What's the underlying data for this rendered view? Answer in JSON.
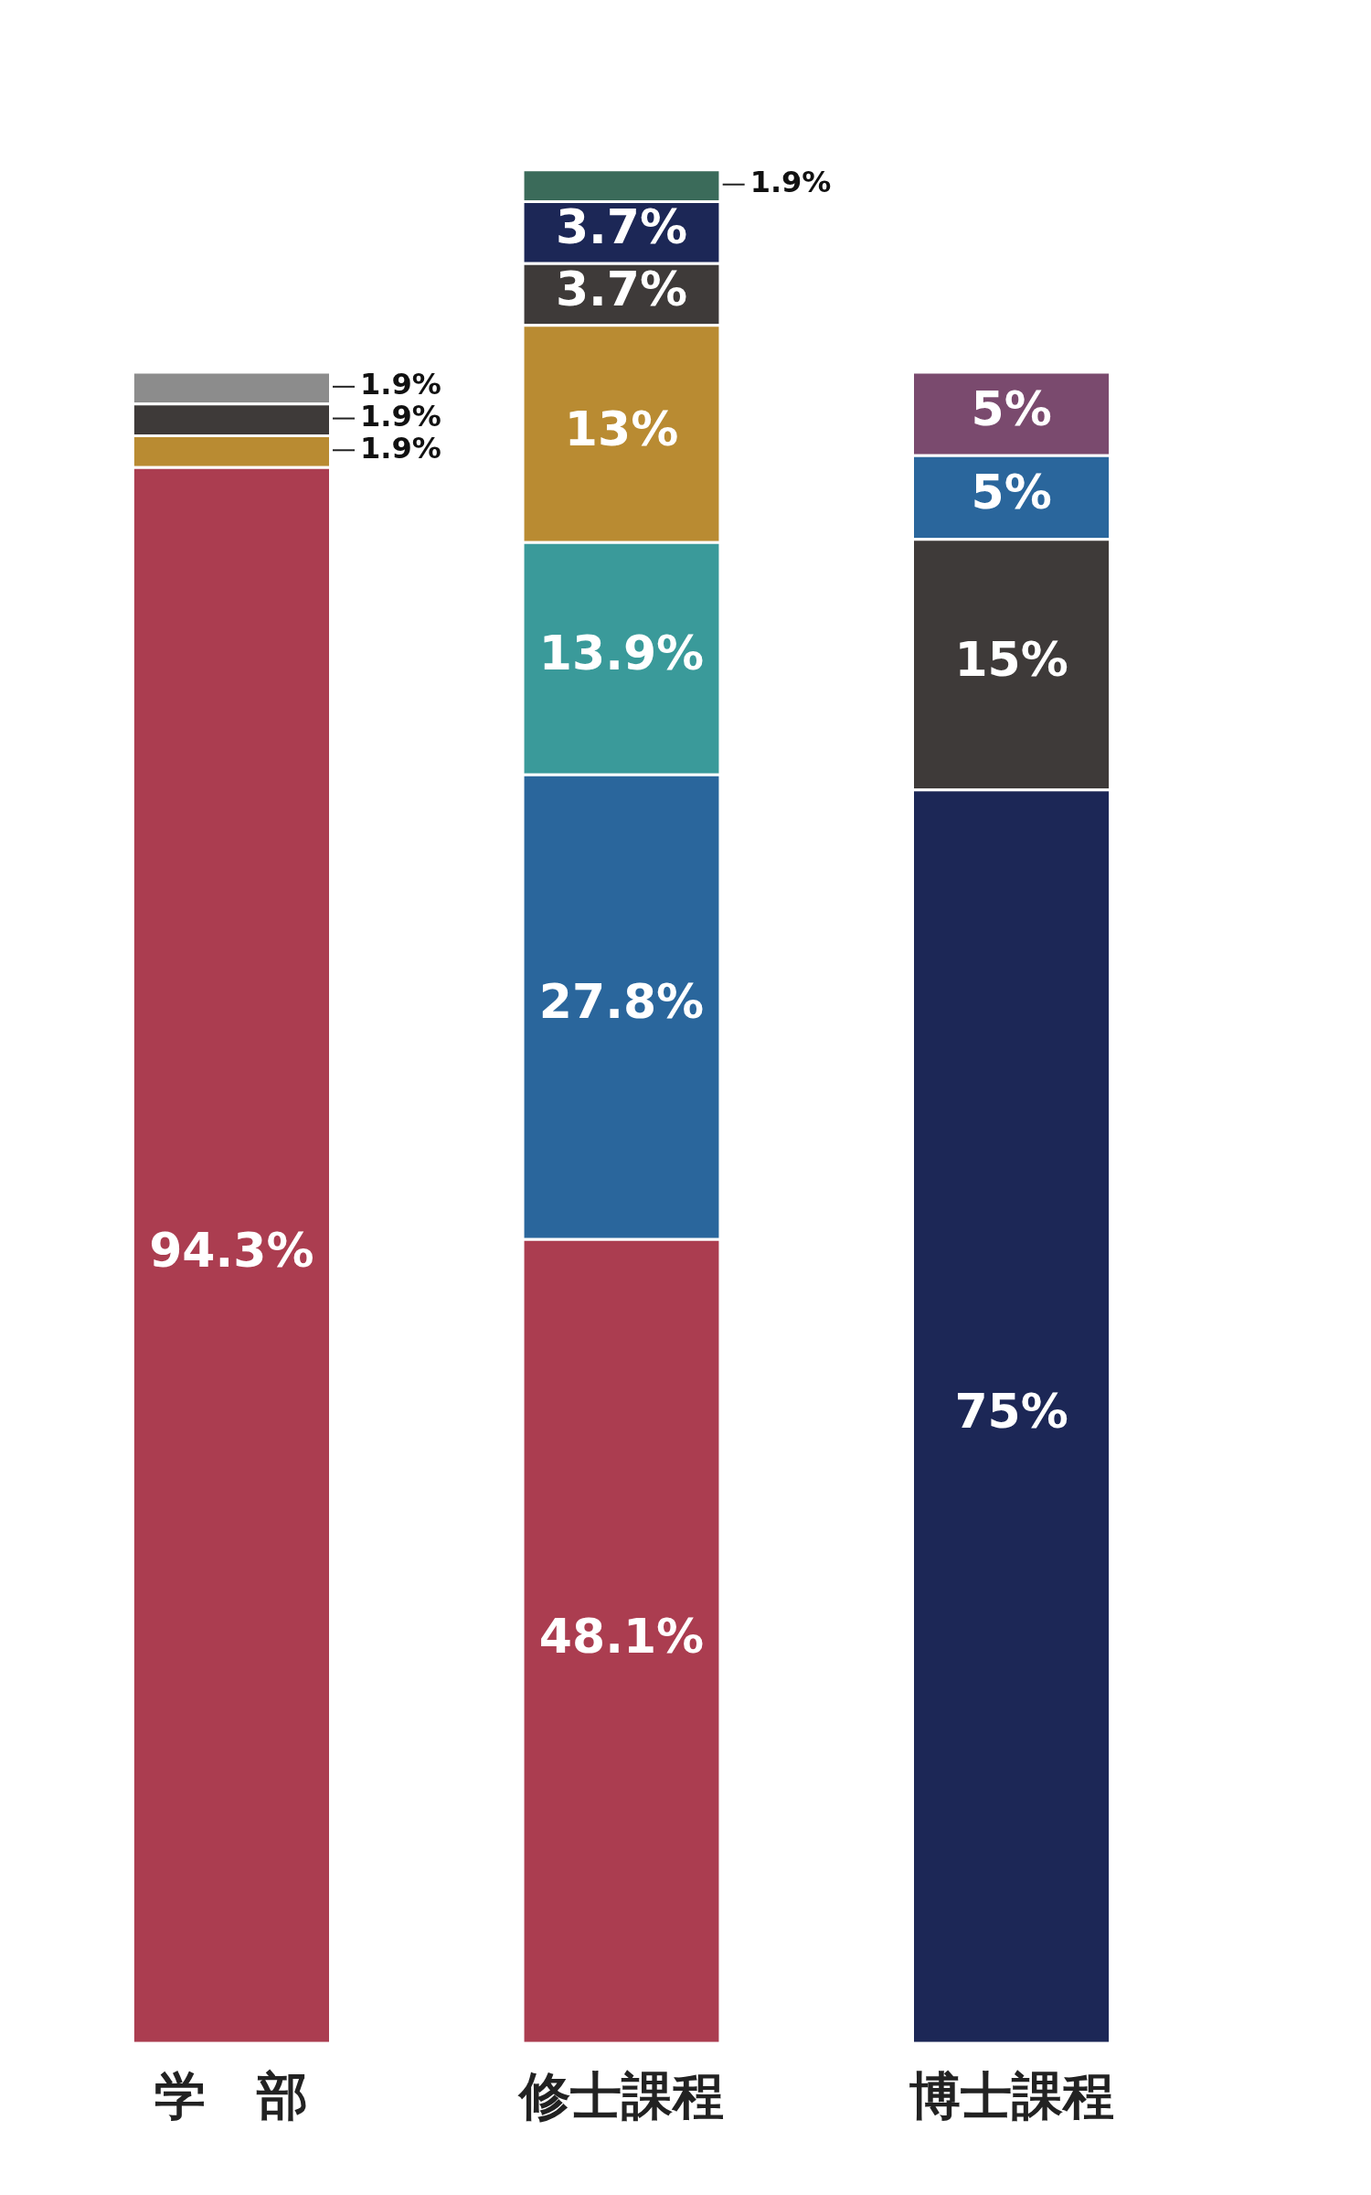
{
  "chart_data": {
    "type": "bar",
    "stacked": true,
    "categories": [
      "学　部",
      "修士課程",
      "博士課程"
    ],
    "series": [
      {
        "colors": [
          "#ab3d50",
          "#ab3d50",
          "#1c2756"
        ],
        "values": [
          94.3,
          48.1,
          75
        ],
        "value_labels": [
          "94.3%",
          "48.1%",
          "75%"
        ]
      },
      {
        "colors": [
          "#b98b32",
          "#2a669c",
          "#3e3a39"
        ],
        "values": [
          1.9,
          27.8,
          15
        ],
        "value_labels": [
          "1.9%",
          "27.8%",
          "15%"
        ]
      },
      {
        "colors": [
          "#3e3a39",
          "#3a9a9a",
          "#2a669c"
        ],
        "values": [
          1.9,
          13.9,
          5
        ],
        "value_labels": [
          "1.9%",
          "13.9%",
          "5%"
        ]
      },
      {
        "colors": [
          "#8c8c8c",
          "#b98b32",
          "#7a4a6e"
        ],
        "values": [
          1.9,
          13,
          5
        ],
        "value_labels": [
          "1.9%",
          "13%",
          "5%"
        ]
      },
      {
        "colors": [
          null,
          "#3e3a39",
          null
        ],
        "values": [
          null,
          3.7,
          null
        ],
        "value_labels": [
          null,
          "3.7%",
          null
        ]
      },
      {
        "colors": [
          null,
          "#1c2756",
          null
        ],
        "values": [
          null,
          3.7,
          null
        ],
        "value_labels": [
          null,
          "3.7%",
          null
        ]
      },
      {
        "colors": [
          null,
          "#3b6b5a",
          null
        ],
        "values": [
          null,
          1.9,
          null
        ],
        "value_labels": [
          null,
          "1.9%",
          null
        ]
      }
    ],
    "legend": false,
    "grid": false
  }
}
